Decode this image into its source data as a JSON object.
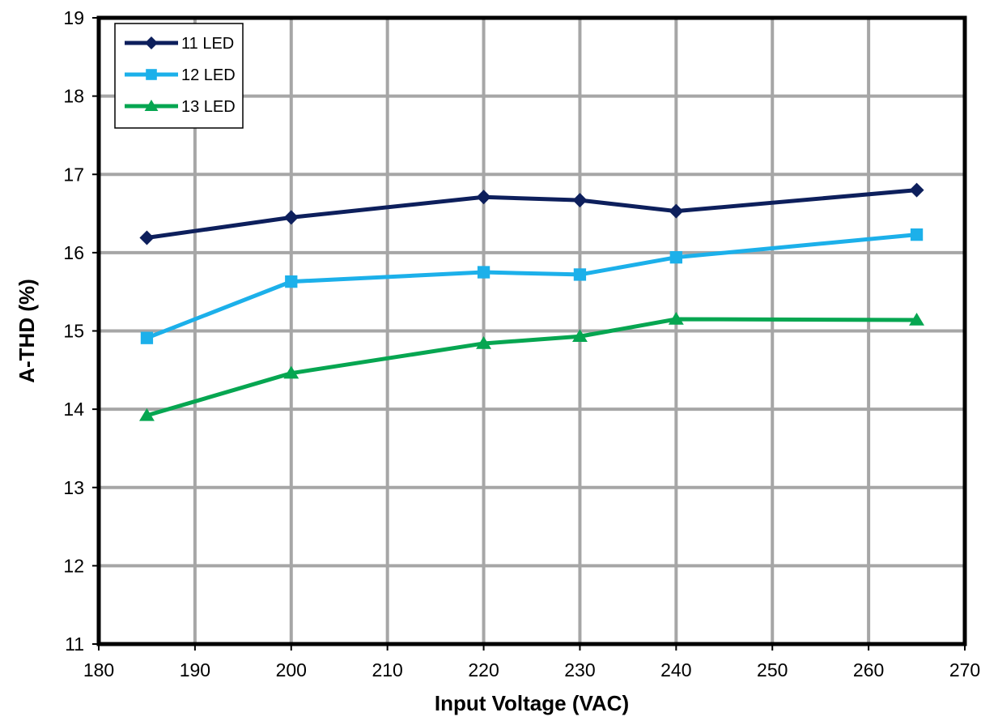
{
  "chart_data": {
    "type": "line",
    "title": "",
    "xlabel": "Input Voltage (VAC)",
    "ylabel": "A-THD (%)",
    "xlim": [
      180,
      270
    ],
    "ylim": [
      11,
      19
    ],
    "x_ticks": [
      180,
      190,
      200,
      210,
      220,
      230,
      240,
      250,
      260,
      270
    ],
    "y_ticks": [
      11,
      12,
      13,
      14,
      15,
      16,
      17,
      18,
      19
    ],
    "grid": true,
    "legend_position": "top-left",
    "x": [
      185,
      200,
      220,
      230,
      240,
      265
    ],
    "series": [
      {
        "name": "11 LED",
        "color": "#0d1f5c",
        "marker": "diamond",
        "values": [
          16.19,
          16.45,
          16.71,
          16.67,
          16.53,
          16.8
        ]
      },
      {
        "name": "12 LED",
        "color": "#1cb0ea",
        "marker": "square",
        "values": [
          14.91,
          15.63,
          15.75,
          15.72,
          15.94,
          16.23
        ]
      },
      {
        "name": "13 LED",
        "color": "#06a651",
        "marker": "triangle",
        "values": [
          13.92,
          14.46,
          14.84,
          14.93,
          15.15,
          15.14
        ]
      }
    ]
  }
}
